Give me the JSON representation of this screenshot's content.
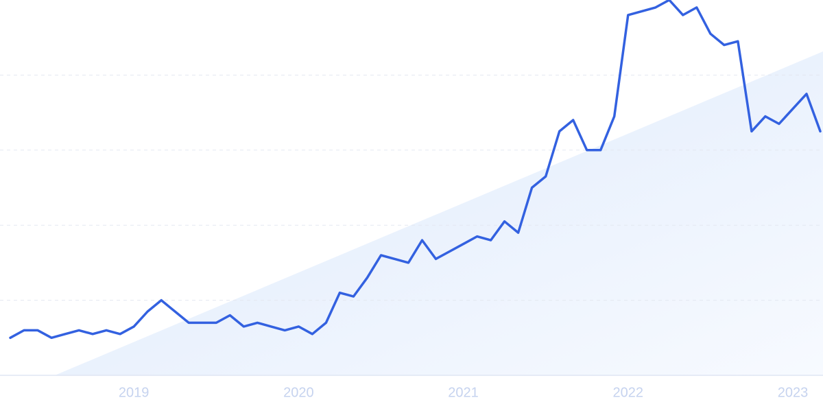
{
  "chart_data": {
    "type": "line",
    "categories": [
      null,
      null,
      null,
      null,
      null,
      null,
      null,
      null,
      null,
      "2019",
      null,
      null,
      null,
      null,
      null,
      null,
      null,
      null,
      null,
      null,
      null,
      "2020",
      null,
      null,
      null,
      null,
      null,
      null,
      null,
      null,
      null,
      null,
      null,
      "2021",
      null,
      null,
      null,
      null,
      null,
      null,
      null,
      null,
      null,
      null,
      null,
      "2022",
      null,
      null,
      null,
      null,
      null,
      null,
      null,
      null,
      null,
      null,
      null,
      "2023",
      null,
      null
    ],
    "series": [
      {
        "color": "#3361e0",
        "values": [
          10,
          12,
          12,
          10,
          11,
          12,
          11,
          12,
          11,
          13,
          17,
          20,
          17,
          14,
          14,
          14,
          16,
          13,
          14,
          13,
          12,
          13,
          11,
          14,
          22,
          21,
          26,
          32,
          31,
          30,
          36,
          31,
          33,
          35,
          37,
          36,
          41,
          38,
          50,
          53,
          65,
          68,
          60,
          60,
          69,
          96,
          97,
          98,
          100,
          96,
          98,
          91,
          88,
          89,
          65,
          69,
          67,
          71,
          75,
          65
        ]
      }
    ],
    "ylim": [
      0,
      100
    ],
    "yticks": [
      20,
      40,
      60,
      80
    ],
    "grid": true
  }
}
